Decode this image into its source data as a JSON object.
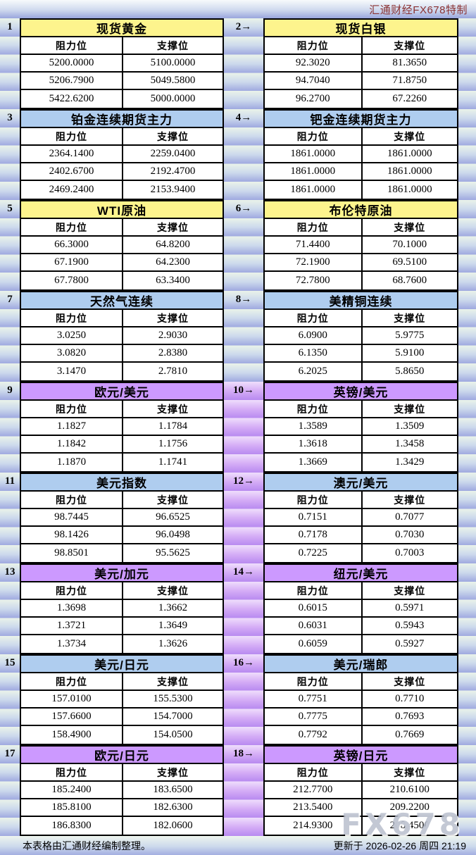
{
  "header": {
    "brand": "汇通财经FX678特制"
  },
  "labels": {
    "resistance": "阻力位",
    "support": "支撑位"
  },
  "footer": {
    "note": "本表格由汇通财经编制整理。",
    "updated": "更新于 2026-02-26 周四 21:19"
  },
  "watermark": "FX678",
  "colors": {
    "title_yellow": "#FDF48D",
    "title_blue": "#AFCDEF",
    "title_purple": "#CC99FF",
    "stripe_blue": "#9FA9E0",
    "stripe_purple": "#B88AF0",
    "brand_red": "#8B3232",
    "border_black": "#000000"
  },
  "chart_data": {
    "type": "table",
    "columns": [
      "阻力位",
      "支撑位"
    ],
    "tables": [
      {
        "no": "1",
        "title": "现货黄金",
        "theme": "yellow",
        "rows": [
          [
            "5200.0000",
            "5100.0000"
          ],
          [
            "5206.7900",
            "5049.5800"
          ],
          [
            "5422.6200",
            "5000.0000"
          ]
        ]
      },
      {
        "no": "2→",
        "title": "现货白银",
        "theme": "yellow",
        "rows": [
          [
            "92.3020",
            "81.3650"
          ],
          [
            "94.7040",
            "71.8750"
          ],
          [
            "96.2700",
            "67.2260"
          ]
        ]
      },
      {
        "no": "3",
        "title": "铂金连续期货主力",
        "theme": "blue",
        "rows": [
          [
            "2364.1400",
            "2259.0400"
          ],
          [
            "2402.6700",
            "2192.4700"
          ],
          [
            "2469.2400",
            "2153.9400"
          ]
        ]
      },
      {
        "no": "4→",
        "title": "钯金连续期货主力",
        "theme": "blue",
        "rows": [
          [
            "1861.0000",
            "1861.0000"
          ],
          [
            "1861.0000",
            "1861.0000"
          ],
          [
            "1861.0000",
            "1861.0000"
          ]
        ]
      },
      {
        "no": "5",
        "title": "WTI原油",
        "theme": "yellow",
        "rows": [
          [
            "66.3000",
            "64.8200"
          ],
          [
            "67.1900",
            "64.2300"
          ],
          [
            "67.7800",
            "63.3400"
          ]
        ]
      },
      {
        "no": "6→",
        "title": "布伦特原油",
        "theme": "yellow",
        "rows": [
          [
            "71.4400",
            "70.1000"
          ],
          [
            "72.1900",
            "69.5100"
          ],
          [
            "72.7800",
            "68.7600"
          ]
        ]
      },
      {
        "no": "7",
        "title": "天然气连续",
        "theme": "blue",
        "rows": [
          [
            "3.0250",
            "2.9030"
          ],
          [
            "3.0820",
            "2.8380"
          ],
          [
            "3.1470",
            "2.7810"
          ]
        ]
      },
      {
        "no": "8→",
        "title": "美精铜连续",
        "theme": "blue",
        "rows": [
          [
            "6.0900",
            "5.9775"
          ],
          [
            "6.1350",
            "5.9100"
          ],
          [
            "6.2025",
            "5.8650"
          ]
        ]
      },
      {
        "no": "9",
        "title": "欧元/美元",
        "theme": "purple",
        "rows": [
          [
            "1.1827",
            "1.1784"
          ],
          [
            "1.1842",
            "1.1756"
          ],
          [
            "1.1870",
            "1.1741"
          ]
        ]
      },
      {
        "no": "10→",
        "title": "英镑/美元",
        "theme": "purple",
        "rows": [
          [
            "1.3589",
            "1.3509"
          ],
          [
            "1.3618",
            "1.3458"
          ],
          [
            "1.3669",
            "1.3429"
          ]
        ]
      },
      {
        "no": "11",
        "title": "美元指数",
        "theme": "blue",
        "rows": [
          [
            "98.7445",
            "96.6525"
          ],
          [
            "98.1426",
            "96.0498"
          ],
          [
            "98.8501",
            "95.5625"
          ]
        ]
      },
      {
        "no": "12→",
        "title": "澳元/美元",
        "theme": "blue",
        "rows": [
          [
            "0.7151",
            "0.7077"
          ],
          [
            "0.7178",
            "0.7030"
          ],
          [
            "0.7225",
            "0.7003"
          ]
        ]
      },
      {
        "no": "13",
        "title": "美元/加元",
        "theme": "purple",
        "rows": [
          [
            "1.3698",
            "1.3662"
          ],
          [
            "1.3721",
            "1.3649"
          ],
          [
            "1.3734",
            "1.3626"
          ]
        ]
      },
      {
        "no": "14→",
        "title": "纽元/美元",
        "theme": "purple",
        "rows": [
          [
            "0.6015",
            "0.5971"
          ],
          [
            "0.6031",
            "0.5943"
          ],
          [
            "0.6059",
            "0.5927"
          ]
        ]
      },
      {
        "no": "15",
        "title": "美元/日元",
        "theme": "blue",
        "rows": [
          [
            "157.0100",
            "155.5300"
          ],
          [
            "157.6600",
            "154.7000"
          ],
          [
            "158.4900",
            "154.0500"
          ]
        ]
      },
      {
        "no": "16→",
        "title": "美元/瑞郎",
        "theme": "blue",
        "rows": [
          [
            "0.7751",
            "0.7710"
          ],
          [
            "0.7775",
            "0.7693"
          ],
          [
            "0.7792",
            "0.7669"
          ]
        ]
      },
      {
        "no": "17",
        "title": "欧元/日元",
        "theme": "purple",
        "rows": [
          [
            "185.2400",
            "183.6500"
          ],
          [
            "185.8100",
            "182.6300"
          ],
          [
            "186.8300",
            "182.0600"
          ]
        ]
      },
      {
        "no": "18→",
        "title": "英镑/日元",
        "theme": "purple",
        "rows": [
          [
            "212.7700",
            "210.6100"
          ],
          [
            "213.5400",
            "209.2200"
          ],
          [
            "214.9300",
            "208.4500"
          ]
        ]
      }
    ]
  }
}
